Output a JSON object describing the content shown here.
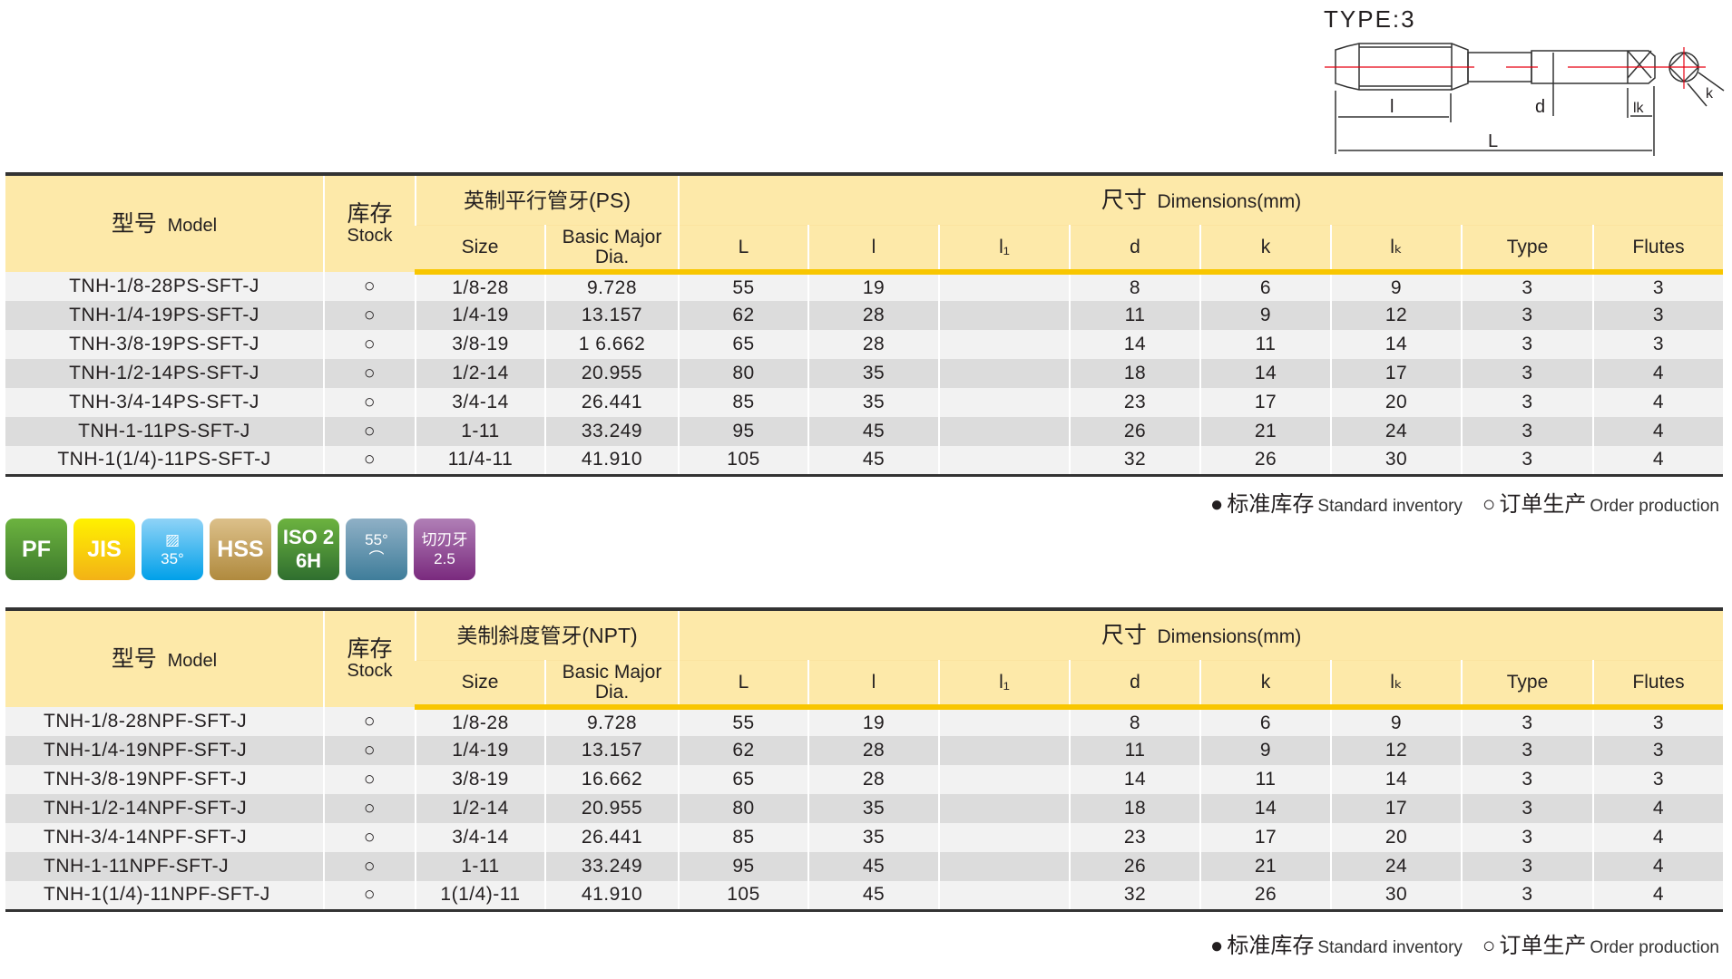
{
  "diagram": {
    "type_label": "TYPE:3",
    "labels": {
      "l": "l",
      "d": "d",
      "lk": "lk",
      "L": "L",
      "k": "k"
    }
  },
  "headers": {
    "model_cn": "型号",
    "model_en": "Model",
    "stock_cn": "库存",
    "stock_en": "Stock",
    "dims_cn": "尺寸",
    "dims_en": "Dimensions(mm)",
    "size": "Size",
    "dia": "Basic Major Dia.",
    "cols": [
      "L",
      "l",
      "l₁",
      "d",
      "k",
      "lₖ",
      "Type",
      "Flutes"
    ]
  },
  "table1": {
    "thread": "英制平行管牙(PS)",
    "rows": [
      [
        "TNH-1/8-28PS-SFT-J",
        "○",
        "1/8-28",
        "9.728",
        "55",
        "19",
        "",
        "8",
        "6",
        "9",
        "3",
        "3"
      ],
      [
        "TNH-1/4-19PS-SFT-J",
        "○",
        "1/4-19",
        "13.157",
        "62",
        "28",
        "",
        "11",
        "9",
        "12",
        "3",
        "3"
      ],
      [
        "TNH-3/8-19PS-SFT-J",
        "○",
        "3/8-19",
        "1 6.662",
        "65",
        "28",
        "",
        "14",
        "11",
        "14",
        "3",
        "3"
      ],
      [
        "TNH-1/2-14PS-SFT-J",
        "○",
        "1/2-14",
        "20.955",
        "80",
        "35",
        "",
        "18",
        "14",
        "17",
        "3",
        "4"
      ],
      [
        "TNH-3/4-14PS-SFT-J",
        "○",
        "3/4-14",
        "26.441",
        "85",
        "35",
        "",
        "23",
        "17",
        "20",
        "3",
        "4"
      ],
      [
        "TNH-1-11PS-SFT-J",
        "○",
        "1-11",
        "33.249",
        "95",
        "45",
        "",
        "26",
        "21",
        "24",
        "3",
        "4"
      ],
      [
        "TNH-1(1/4)-11PS-SFT-J",
        "○",
        "11/4-11",
        "41.910",
        "105",
        "45",
        "",
        "32",
        "26",
        "30",
        "3",
        "4"
      ]
    ]
  },
  "table2": {
    "thread": "美制斜度管牙(NPT)",
    "rows": [
      [
        "TNH-1/8-28NPF-SFT-J",
        "○",
        "1/8-28",
        "9.728",
        "55",
        "19",
        "",
        "8",
        "6",
        "9",
        "3",
        "3"
      ],
      [
        "TNH-1/4-19NPF-SFT-J",
        "○",
        "1/4-19",
        "13.157",
        "62",
        "28",
        "",
        "11",
        "9",
        "12",
        "3",
        "3"
      ],
      [
        "TNH-3/8-19NPF-SFT-J",
        "○",
        "3/8-19",
        "16.662",
        "65",
        "28",
        "",
        "14",
        "11",
        "14",
        "3",
        "3"
      ],
      [
        "TNH-1/2-14NPF-SFT-J",
        "○",
        "1/2-14",
        "20.955",
        "80",
        "35",
        "",
        "18",
        "14",
        "17",
        "3",
        "4"
      ],
      [
        "TNH-3/4-14NPF-SFT-J",
        "○",
        "3/4-14",
        "26.441",
        "85",
        "35",
        "",
        "23",
        "17",
        "20",
        "3",
        "4"
      ],
      [
        "TNH-1-11NPF-SFT-J",
        "○",
        "1-11",
        "33.249",
        "95",
        "45",
        "",
        "26",
        "21",
        "24",
        "3",
        "4"
      ],
      [
        "TNH-1(1/4)-11NPF-SFT-J",
        "○",
        "1(1/4)-11",
        "41.910",
        "105",
        "45",
        "",
        "32",
        "26",
        "30",
        "3",
        "4"
      ]
    ]
  },
  "legend": {
    "std_mark": "●",
    "std_cn": "标准库存",
    "std_en": "Standard inventory",
    "ord_mark": "○",
    "ord_cn": "订单生产",
    "ord_en": "Order production"
  },
  "badges": [
    {
      "name": "pf",
      "lines": [
        "PF"
      ],
      "colors": [
        "#6cb33f",
        "#3d7a2c"
      ]
    },
    {
      "name": "jis",
      "lines": [
        "JIS"
      ],
      "colors": [
        "#fff100",
        "#f3b216"
      ]
    },
    {
      "name": "helix-35",
      "lines": [
        "▨",
        "35°"
      ],
      "colors": [
        "#8fd3f7",
        "#00a0e9"
      ]
    },
    {
      "name": "hss",
      "lines": [
        "HSS"
      ],
      "colors": [
        "#dcc08a",
        "#b08a3e"
      ]
    },
    {
      "name": "iso2-6h",
      "lines": [
        "ISO 2",
        "6H"
      ],
      "colors": [
        "#6cb33f",
        "#2f6f2f"
      ]
    },
    {
      "name": "angle-55",
      "lines": [
        "55°",
        "⌒"
      ],
      "colors": [
        "#8fb0c6",
        "#3f7d9a"
      ]
    },
    {
      "name": "chamfer-2-5",
      "lines": [
        "切刃牙",
        "2.5"
      ],
      "colors": [
        "#b07fb6",
        "#7a2a7e"
      ]
    }
  ]
}
